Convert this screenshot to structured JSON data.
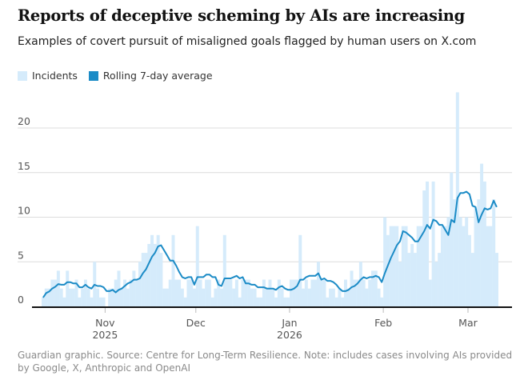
{
  "title": "Reports of deceptive scheming by AIs are increasing",
  "subtitle": "Examples of covert pursuit of misaligned goals flagged by human users on X.com",
  "footer": "Guardian graphic. Source: Centre for Long-Term Resilience. Note: includes cases involving AIs provided by Google, X, Anthropic and OpenAI",
  "colors": {
    "bars": "#d5ebfb",
    "line": "#1b8bc6",
    "grid": "#dcdcdc"
  },
  "chart_data": {
    "type": "bar",
    "title": "Reports of deceptive scheming by AIs are increasing",
    "xlabel": "",
    "ylabel": "",
    "x_start": "2025-10-11",
    "x_end": "2026-03-10",
    "interval": "daily",
    "ylim": [
      0,
      24
    ],
    "grid": true,
    "legend": [
      {
        "label": "Incidents",
        "type": "bar"
      },
      {
        "label": "Rolling 7-day average",
        "type": "line"
      }
    ],
    "legend_position": "top-left",
    "yticks": [
      "0",
      "5",
      "10",
      "15",
      "20"
    ],
    "ytick_values": [
      0,
      5,
      10,
      15,
      20
    ],
    "xticks": [
      {
        "label": "Nov",
        "sub": "2025",
        "day_index": 21
      },
      {
        "label": "Dec",
        "sub": "",
        "day_index": 51
      },
      {
        "label": "Jan",
        "sub": "2026",
        "day_index": 82
      },
      {
        "label": "Feb",
        "sub": "",
        "day_index": 113
      },
      {
        "label": "Mar",
        "sub": "",
        "day_index": 141
      }
    ],
    "values": [
      1,
      2,
      2,
      3,
      3,
      4,
      2,
      1,
      4,
      2,
      2,
      3,
      1,
      2,
      3,
      2,
      1,
      5,
      2,
      1,
      1,
      0,
      2,
      2,
      3,
      4,
      2,
      3,
      2,
      3,
      4,
      3,
      5,
      6,
      6,
      7,
      8,
      7,
      8,
      6,
      2,
      2,
      3,
      8,
      3,
      3,
      2,
      1,
      3,
      3,
      2,
      9,
      3,
      2,
      3,
      3,
      1,
      2,
      3,
      2,
      8,
      3,
      3,
      2,
      3,
      1,
      3,
      3,
      3,
      2,
      2,
      1,
      1,
      3,
      2,
      3,
      2,
      1,
      3,
      2,
      1,
      1,
      3,
      3,
      3,
      8,
      2,
      3,
      2,
      3,
      3,
      5,
      3,
      3,
      1,
      2,
      2,
      1,
      2,
      1,
      3,
      2,
      4,
      3,
      3,
      5,
      3,
      2,
      3,
      4,
      4,
      2,
      1,
      10,
      8,
      9,
      9,
      9,
      5,
      9,
      9,
      6,
      7,
      6,
      9,
      9,
      13,
      14,
      3,
      14,
      5,
      6,
      9,
      9,
      10,
      15,
      12,
      24,
      10,
      9,
      10,
      8,
      6,
      11,
      12,
      16,
      14,
      9,
      9,
      12,
      6
    ]
  }
}
